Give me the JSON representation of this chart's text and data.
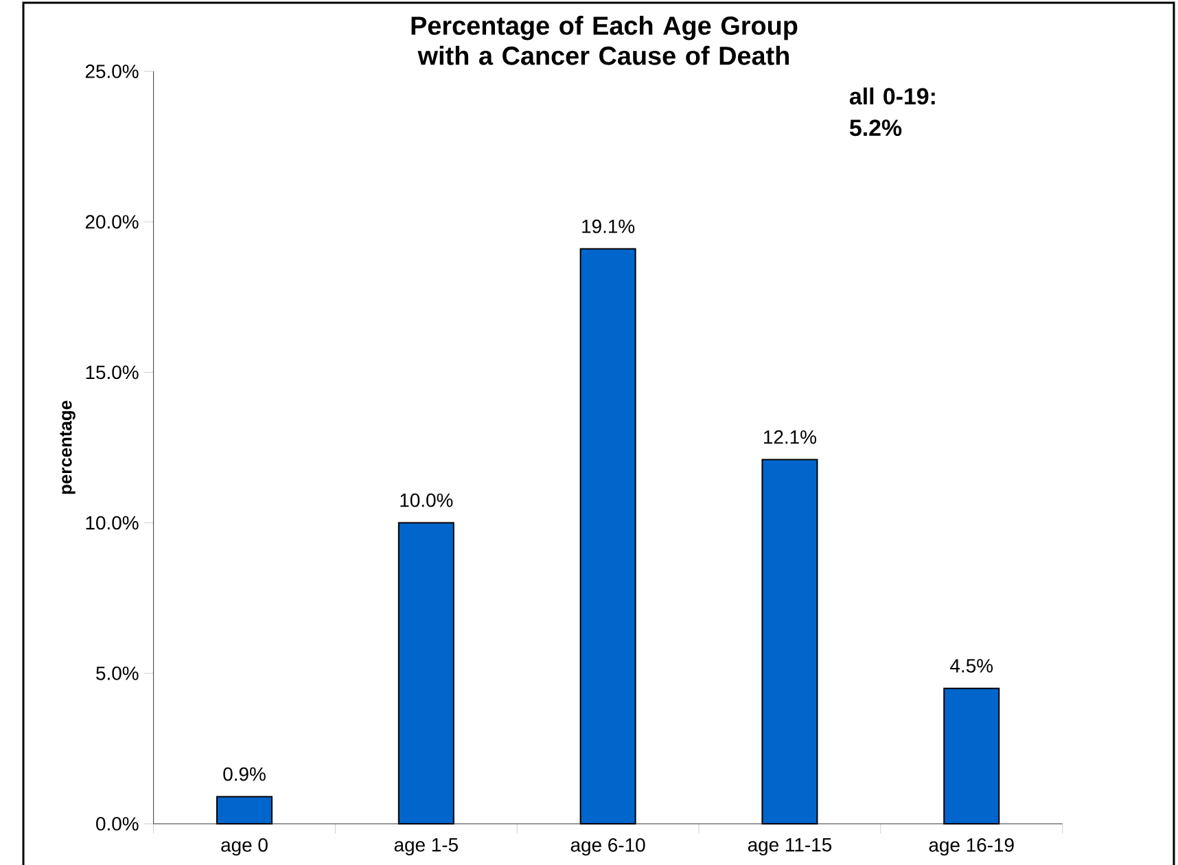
{
  "chart_data": {
    "type": "bar",
    "title": "Percentage of Each Age Group with a Cancer Cause of Death",
    "ylabel": "percentage",
    "categories": [
      "age 0",
      "age 1-5",
      "age 6-10",
      "age 11-15",
      "age 16-19"
    ],
    "values": [
      0.9,
      10.0,
      19.1,
      12.1,
      4.5
    ],
    "value_labels": [
      "0.9%",
      "10.0%",
      "19.1%",
      "12.1%",
      "4.5%"
    ],
    "color": "#0066cc",
    "ylim": [
      0,
      25
    ],
    "yticks": [
      {
        "value": 0,
        "label": "0.0%"
      },
      {
        "value": 5,
        "label": "5.0%"
      },
      {
        "value": 10,
        "label": "10.0%"
      },
      {
        "value": 15,
        "label": "15.0%"
      },
      {
        "value": 20,
        "label": "20.0%"
      },
      {
        "value": 25,
        "label": "25.0%"
      }
    ],
    "annotations": [
      "all 0-19: 5.2%"
    ]
  }
}
